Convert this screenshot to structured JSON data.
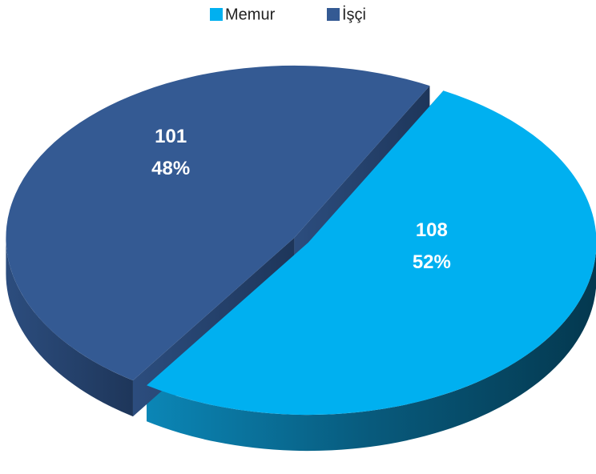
{
  "chart_data": {
    "type": "pie3d",
    "categories": [
      "Memur",
      "İşçi"
    ],
    "values": [
      108,
      101
    ],
    "percent_labels": [
      "52%",
      "48%"
    ],
    "colors": [
      "#00b0f0",
      "#345a93"
    ],
    "legend": "top"
  }
}
